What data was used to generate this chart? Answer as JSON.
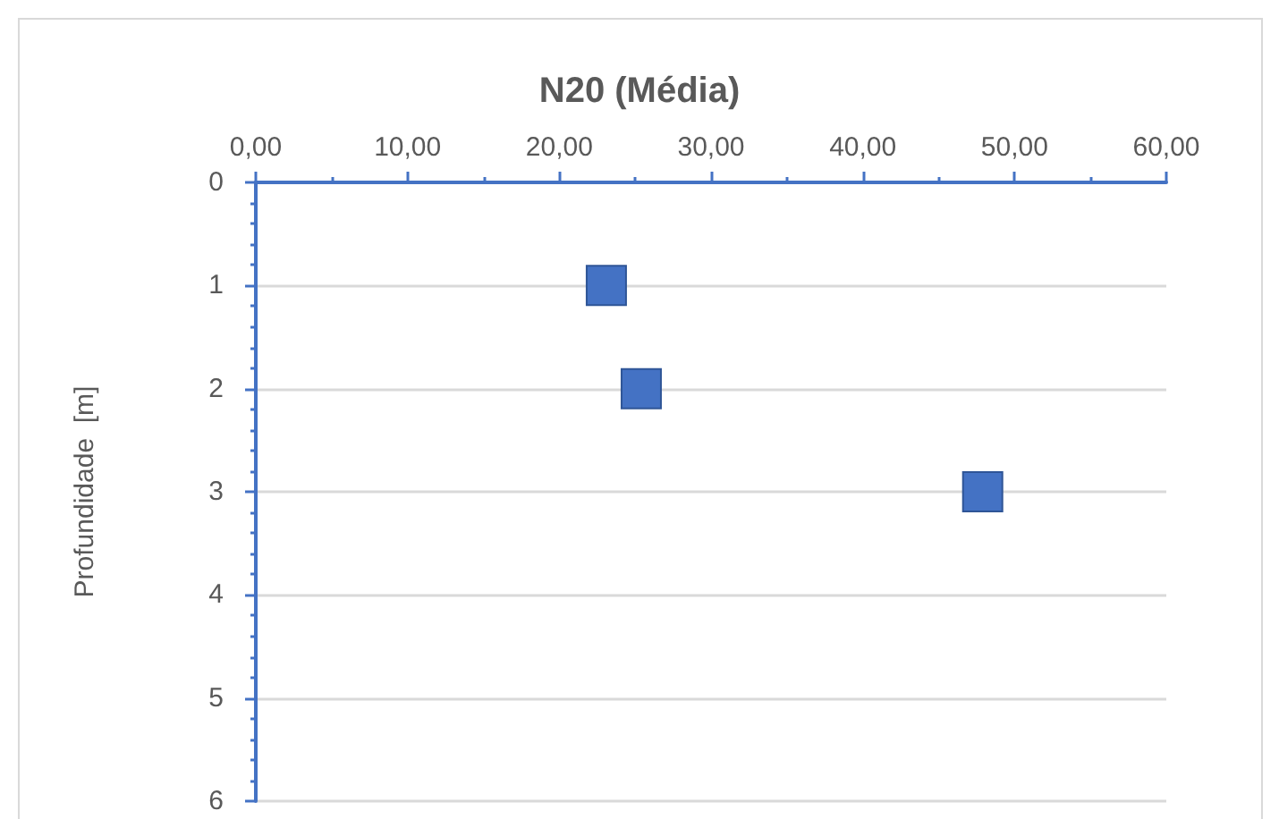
{
  "chart_data": {
    "type": "scatter",
    "title": "N20 (Média)",
    "ylabel": "Profundidade  [m]",
    "x": [
      23.1,
      25.4,
      47.9
    ],
    "values": [
      1,
      2,
      3
    ],
    "color": "#4472c4",
    "marker": "square",
    "xlim": [
      0,
      60
    ],
    "xticks": [
      {
        "value": 0,
        "label": "0,00"
      },
      {
        "value": 10,
        "label": "10,00"
      },
      {
        "value": 20,
        "label": "20,00"
      },
      {
        "value": 30,
        "label": "30,00"
      },
      {
        "value": 40,
        "label": "40,00"
      },
      {
        "value": 50,
        "label": "50,00"
      },
      {
        "value": 60,
        "label": "60,00"
      }
    ],
    "ylim": [
      6,
      0
    ],
    "yticks": [
      0,
      1,
      2,
      3,
      4,
      5,
      6
    ],
    "grid": "y"
  }
}
